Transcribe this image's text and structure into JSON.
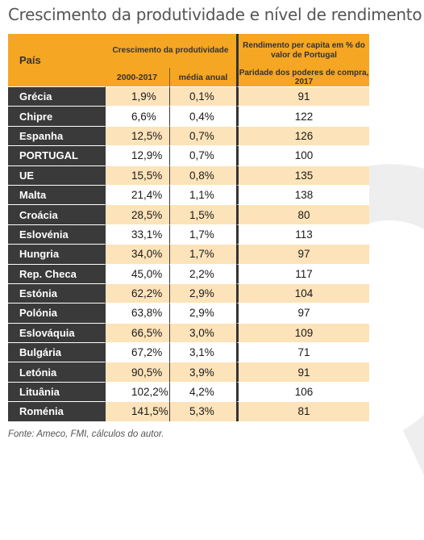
{
  "title": "Crescimento da produtividade e nível de rendimento",
  "headers": {
    "country": "País",
    "growth_group": "Crescimento da produtividade",
    "period": "2000-2017",
    "annual": "média anual",
    "income_group": "Rendimento per capita em % do valor de Portugal",
    "income_sub": "Paridade dos poderes de compra, 2017"
  },
  "rows": [
    {
      "country": "Grécia",
      "growth": "1,9%",
      "annual": "0,1%",
      "income": "91"
    },
    {
      "country": "Chipre",
      "growth": "6,6%",
      "annual": "0,4%",
      "income": "122"
    },
    {
      "country": "Espanha",
      "growth": "12,5%",
      "annual": "0,7%",
      "income": "126"
    },
    {
      "country": "PORTUGAL",
      "growth": "12,9%",
      "annual": "0,7%",
      "income": "100"
    },
    {
      "country": "UE",
      "growth": "15,5%",
      "annual": "0,8%",
      "income": "135"
    },
    {
      "country": "Malta",
      "growth": "21,4%",
      "annual": "1,1%",
      "income": "138"
    },
    {
      "country": "Croácia",
      "growth": "28,5%",
      "annual": "1,5%",
      "income": "80"
    },
    {
      "country": "Eslovénia",
      "growth": "33,1%",
      "annual": "1,7%",
      "income": "113"
    },
    {
      "country": "Hungria",
      "growth": "34,0%",
      "annual": "1,7%",
      "income": "97"
    },
    {
      "country": "Rep. Checa",
      "growth": "45,0%",
      "annual": "2,2%",
      "income": "117"
    },
    {
      "country": "Estónia",
      "growth": "62,2%",
      "annual": "2,9%",
      "income": "104"
    },
    {
      "country": "Polónia",
      "growth": "63,8%",
      "annual": "2,9%",
      "income": "97"
    },
    {
      "country": "Eslováquia",
      "growth": "66,5%",
      "annual": "3,0%",
      "income": "109"
    },
    {
      "country": "Bulgária",
      "growth": "67,2%",
      "annual": "3,1%",
      "income": "71"
    },
    {
      "country": "Letónia",
      "growth": "90,5%",
      "annual": "3,9%",
      "income": "91"
    },
    {
      "country": "Lituânia",
      "growth": "102,2%",
      "annual": "4,2%",
      "income": "106"
    },
    {
      "country": "Roménia",
      "growth": "141,5%",
      "annual": "5,3%",
      "income": "81"
    }
  ],
  "source": "Fonte: Ameco, FMI, cálculos do autor.",
  "colors": {
    "header": "#f5a623",
    "row_alt": "#fde3b9",
    "country_bg": "#3a3a3a"
  }
}
